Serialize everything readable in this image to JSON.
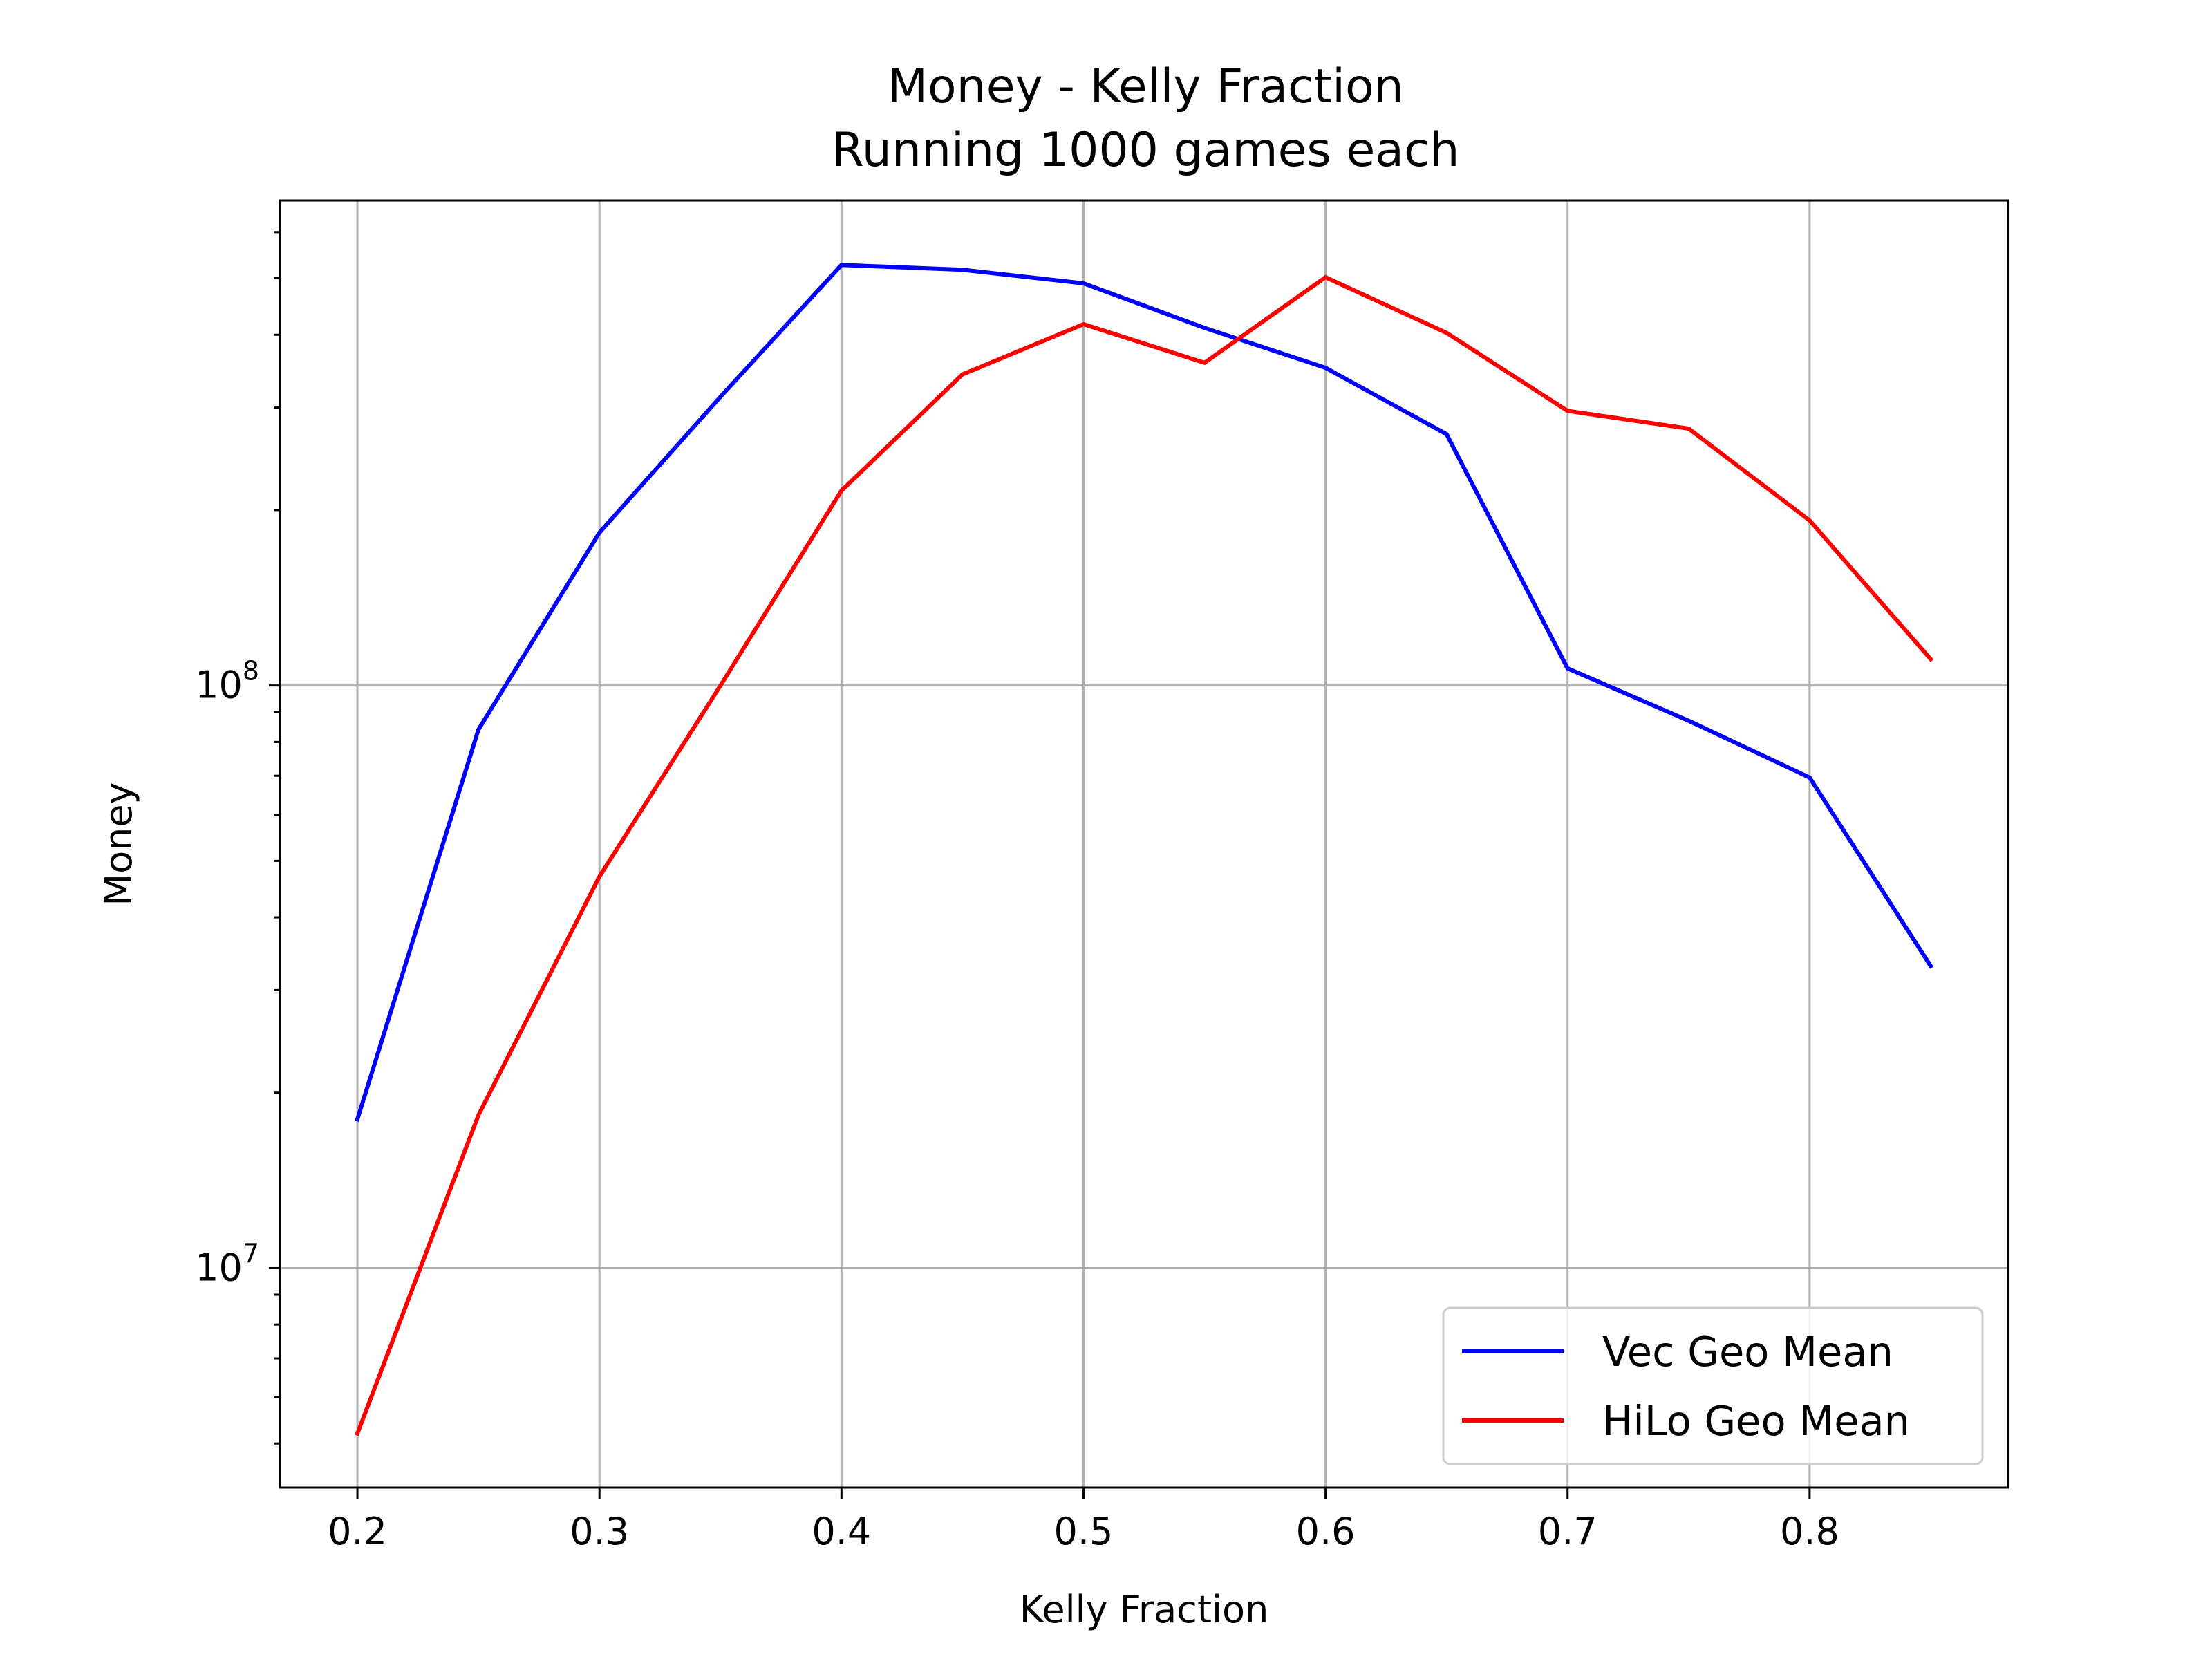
{
  "chart_data": {
    "type": "line",
    "title": "Money - Kelly Fraction",
    "subtitle": "Running 1000 games each",
    "xlabel": "Kelly Fraction",
    "ylabel": "Money",
    "yscale": "log",
    "xlim": [
      0.168,
      0.882
    ],
    "ylim": [
      4200000,
      680000000
    ],
    "x_ticks": [
      0.2,
      0.3,
      0.4,
      0.5,
      0.6,
      0.7,
      0.8
    ],
    "x_tick_labels": [
      "0.2",
      "0.3",
      "0.4",
      "0.5",
      "0.6",
      "0.7",
      "0.8"
    ],
    "y_major_ticks": [
      {
        "value": 10000000,
        "base": "10",
        "exp": "7"
      },
      {
        "value": 100000000,
        "base": "10",
        "exp": "8"
      }
    ],
    "grid": true,
    "legend_position": "lower-right",
    "x": [
      0.2,
      0.25,
      0.3,
      0.35,
      0.4,
      0.45,
      0.5,
      0.55,
      0.6,
      0.65,
      0.7,
      0.75,
      0.8,
      0.85
    ],
    "series": [
      {
        "name": "Vec Geo Mean",
        "color": "#0000ff",
        "values": [
          18000000,
          84000000,
          183000000,
          313000000,
          527000000,
          517000000,
          490000000,
          411000000,
          351000000,
          270000000,
          107000000,
          87000000,
          69500000,
          33000000
        ]
      },
      {
        "name": "HiLo Geo Mean",
        "color": "#ff0000",
        "values": [
          5200000,
          18300000,
          47000000,
          100000000,
          216000000,
          342000000,
          417000000,
          358000000,
          502000000,
          403000000,
          296000000,
          276000000,
          192000000,
          111000000
        ]
      }
    ]
  }
}
